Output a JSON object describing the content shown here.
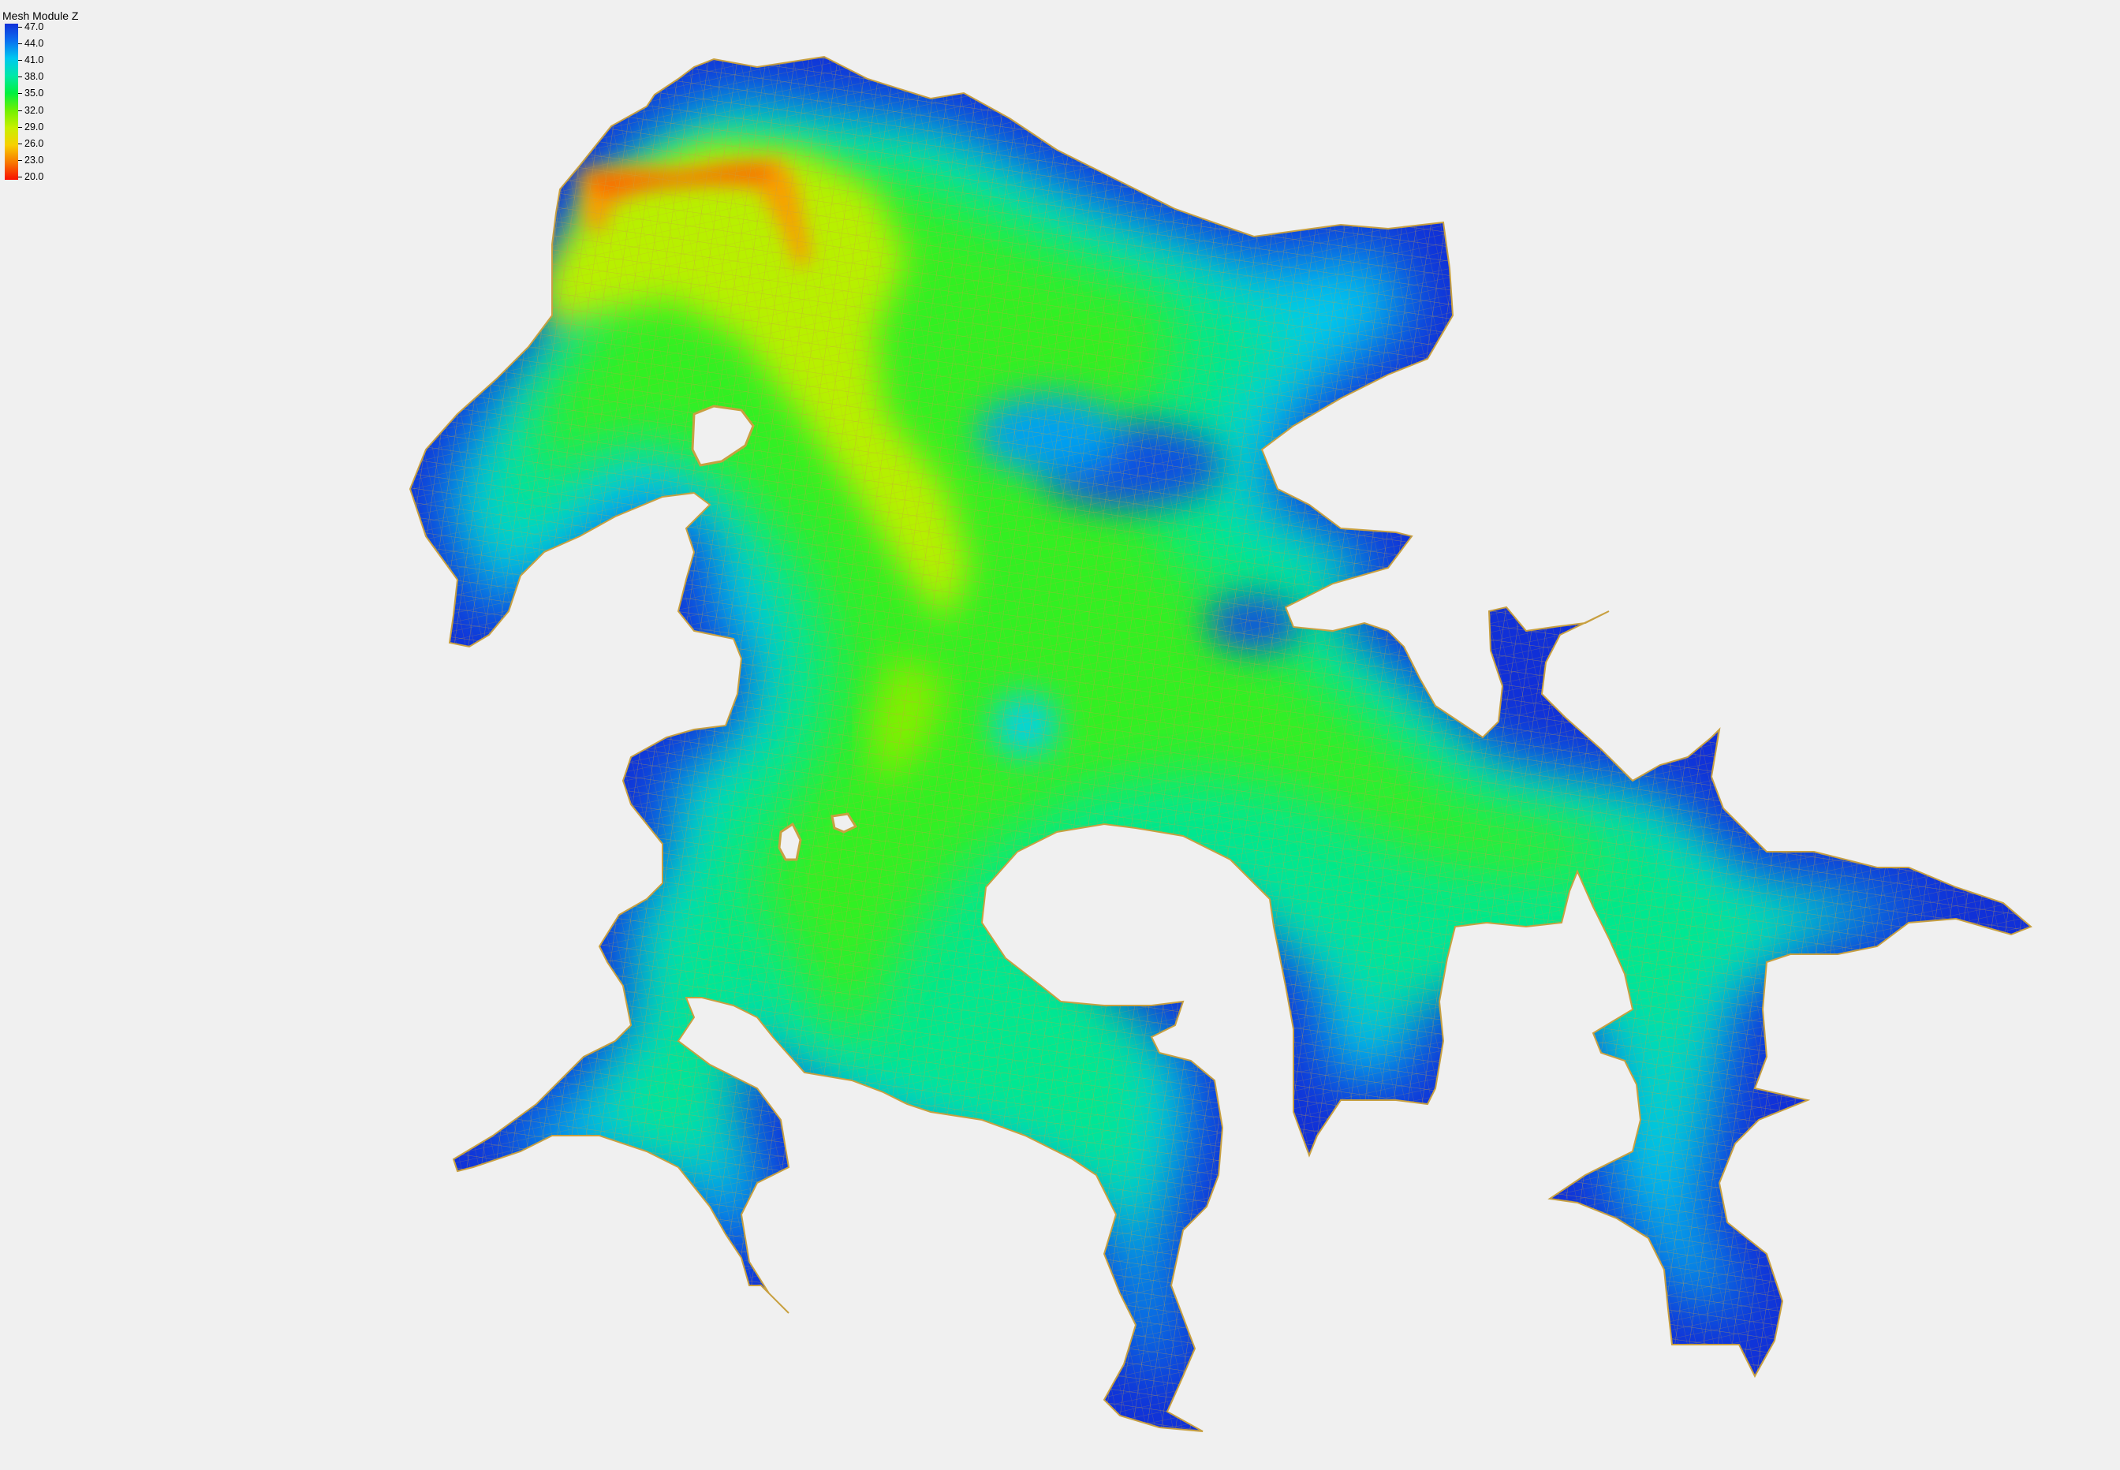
{
  "legend": {
    "title": "Mesh Module Z",
    "entries": [
      {
        "label": "47.0",
        "color": "#1030d8"
      },
      {
        "label": "44.0",
        "color": "#0a70f0"
      },
      {
        "label": "41.0",
        "color": "#00c8f0"
      },
      {
        "label": "38.0",
        "color": "#00e8a8"
      },
      {
        "label": "35.0",
        "color": "#00f040"
      },
      {
        "label": "32.0",
        "color": "#70f000"
      },
      {
        "label": "29.0",
        "color": "#c8f000"
      },
      {
        "label": "26.0",
        "color": "#f8d000"
      },
      {
        "label": "23.0",
        "color": "#f87800"
      },
      {
        "label": "20.0",
        "color": "#f81000"
      }
    ]
  },
  "map": {
    "background_color": "#f0f0f0",
    "mesh_line_color": "#c8a040",
    "deep_color": "#1030d8",
    "shallow_color": "#f81000"
  }
}
